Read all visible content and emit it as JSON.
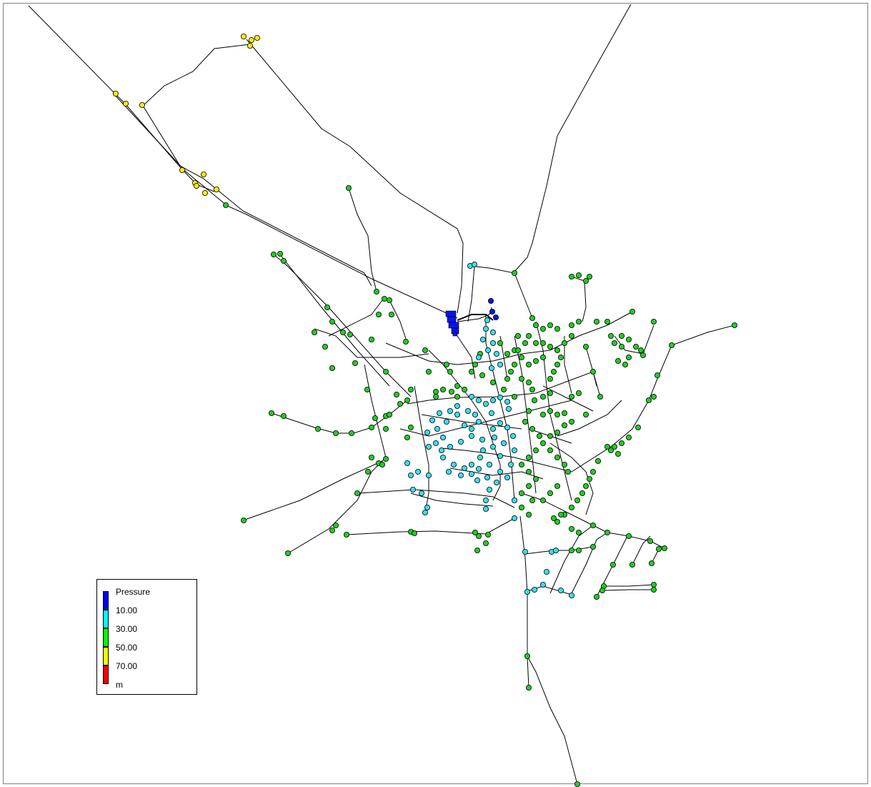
{
  "legend": {
    "title": "Pressure",
    "thresholds": [
      "10.00",
      "30.00",
      "50.00",
      "70.00"
    ],
    "unit": "m",
    "colors": [
      "#0000ff",
      "#00ffff",
      "#00ff00",
      "#ffff00",
      "#ff0000"
    ]
  },
  "node_colors": {
    "blue": "#0a14e6",
    "cyan": "#35e0f0",
    "green": "#22cc22",
    "yellow": "#ffee00"
  }
}
